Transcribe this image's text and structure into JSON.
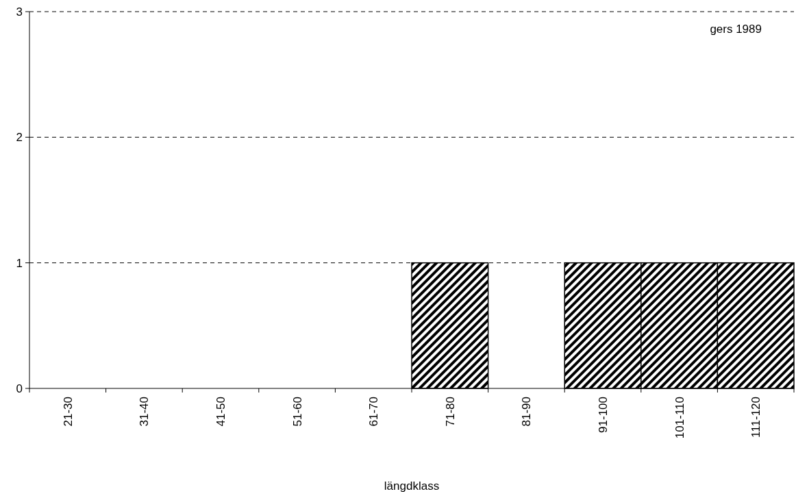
{
  "chart_data": {
    "type": "bar",
    "xlabel": "längdklass",
    "categories": [
      "21-30",
      "31-40",
      "41-50",
      "51-60",
      "61-70",
      "71-80",
      "81-90",
      "91-100",
      "101-110",
      "111-120"
    ],
    "values": [
      0,
      0,
      0,
      0,
      0,
      1,
      0,
      1,
      1,
      1
    ],
    "color": "#000000",
    "ylim": [
      0,
      3
    ],
    "yticks": [
      0,
      1,
      2,
      3
    ],
    "grid": "y",
    "line_style": "dashed",
    "annotations": [
      "gers 1989"
    ]
  }
}
